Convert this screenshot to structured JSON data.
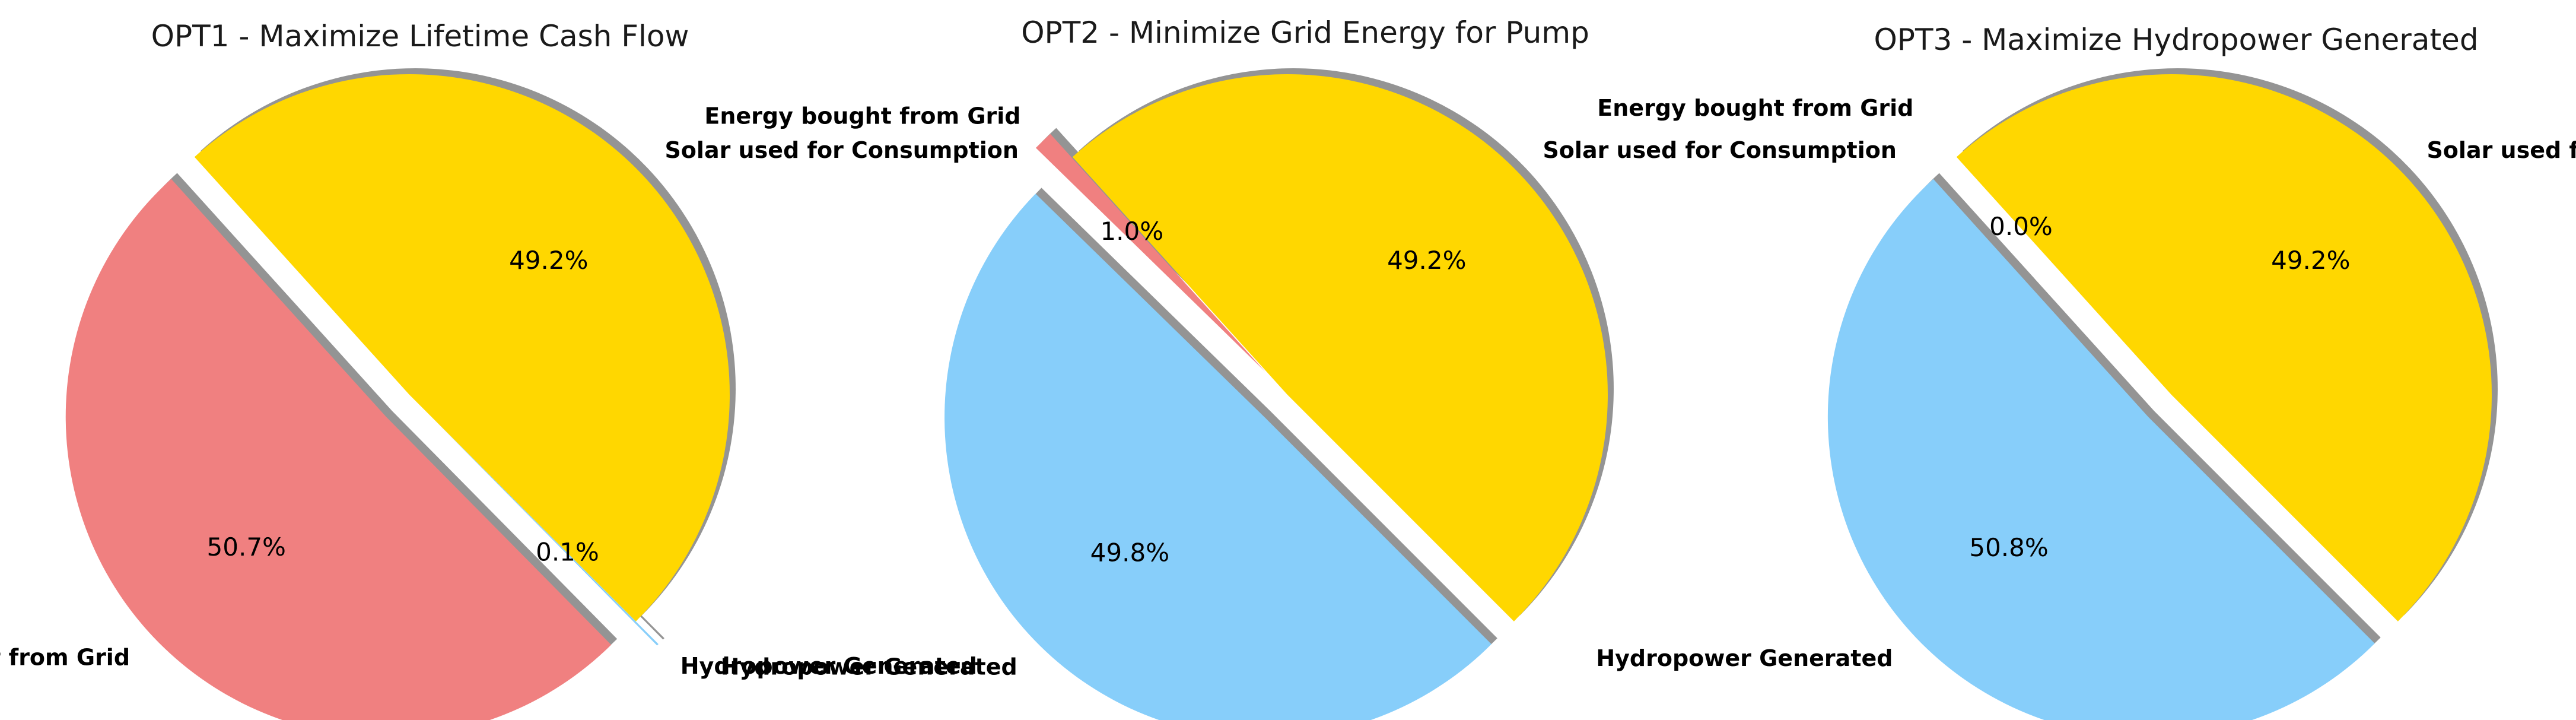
{
  "chart_data": [
    {
      "type": "pie",
      "title": "OPT1 - Maximize Lifetime Cash Flow",
      "labels": [
        "Solar used for Consumption",
        "Energy bought from Grid",
        "Hydropower Generated"
      ],
      "values": [
        49.2,
        50.7,
        0.1
      ],
      "autopct": [
        "49.2%",
        "50.7%",
        "0.1%"
      ],
      "colors": [
        "#ffd700",
        "#f08080",
        "#87cefa"
      ],
      "explode": [
        0,
        0.1,
        0.1
      ],
      "start_angle": 315,
      "shadow": true,
      "legend": "none"
    },
    {
      "type": "pie",
      "title": "OPT2 - Minimize Grid Energy for Pump",
      "labels": [
        "Solar used for Consumption",
        "Energy bought from Grid",
        "Hydropower Generated"
      ],
      "values": [
        49.2,
        1.0,
        49.8
      ],
      "autopct": [
        "49.2%",
        "1.0%",
        "49.8%"
      ],
      "colors": [
        "#ffd700",
        "#f08080",
        "#87cefa"
      ],
      "explode": [
        0,
        0.1,
        0.1
      ],
      "start_angle": 315,
      "shadow": true,
      "legend": "none"
    },
    {
      "type": "pie",
      "title": "OPT3 - Maximize Hydropower Generated",
      "labels": [
        "Solar used for Consumption",
        "Energy bought from Grid",
        "Hydropower Generated"
      ],
      "values": [
        49.2,
        0.0,
        50.8
      ],
      "autopct": [
        "49.2%",
        "0.0%",
        "50.8%"
      ],
      "colors": [
        "#ffd700",
        "#f08080",
        "#87cefa"
      ],
      "explode": [
        0,
        0.1,
        0.1
      ],
      "start_angle": 315,
      "shadow": true,
      "legend": "none"
    }
  ]
}
